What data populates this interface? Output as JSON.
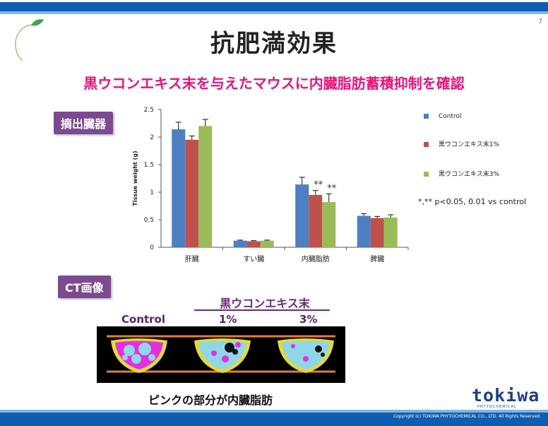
{
  "page": {
    "number": "7",
    "title": "抗肥満効果",
    "subtitle": "黒ウコンエキス末を与えたマウスに内臓脂肪蓄積抑制を確認",
    "tag_organs": "摘出臓器",
    "tag_ct": "CT画像",
    "ct_header": "黒ウコンエキス末",
    "ct_labels": [
      "Control",
      "1%",
      "3%"
    ],
    "caption": "ピンクの部分が内臓脂肪",
    "logo": "tokiwa",
    "logo_sub": "PHYTOCHEMICAL",
    "copyright": "Copyright (c) TOKIWA PHYTOCHEMICAL CO., LTD. All Rights Reserved.",
    "note": "*,** p<0.05, 0.01 vs control"
  },
  "colors": {
    "control": "#4e7fc1",
    "one": "#c0504d",
    "three": "#9bbb59",
    "brand_blue": "#0f5db0",
    "magenta": "#e8137a",
    "purple": "#7b4a8f"
  },
  "chart_data": {
    "type": "bar",
    "categories": [
      "肝臓",
      "すい臓",
      "内臓脂肪",
      "脾臓"
    ],
    "ylabel": "Tissue weight (g)",
    "ylim": [
      0,
      2.5
    ],
    "yticks": [
      "0",
      "0.5",
      "1",
      "1.5",
      "2",
      "2.5"
    ],
    "grid": false,
    "legend_position": "right",
    "series": [
      {
        "name": "Control",
        "values": [
          2.14,
          0.12,
          1.14,
          0.57
        ],
        "errors": [
          0.13,
          0.01,
          0.13,
          0.04
        ]
      },
      {
        "name": "黒ウコンエキス末1%",
        "values": [
          1.95,
          0.11,
          0.95,
          0.53
        ],
        "errors": [
          0.07,
          0.01,
          0.08,
          0.03
        ]
      },
      {
        "name": "黒ウコンエキス末3%",
        "values": [
          2.2,
          0.12,
          0.82,
          0.54
        ],
        "errors": [
          0.12,
          0.01,
          0.15,
          0.05
        ]
      }
    ],
    "annotations": [
      {
        "category": "内臓脂肪",
        "series": 1,
        "text": "**"
      },
      {
        "category": "内臓脂肪",
        "series": 2,
        "text": "**"
      }
    ]
  }
}
